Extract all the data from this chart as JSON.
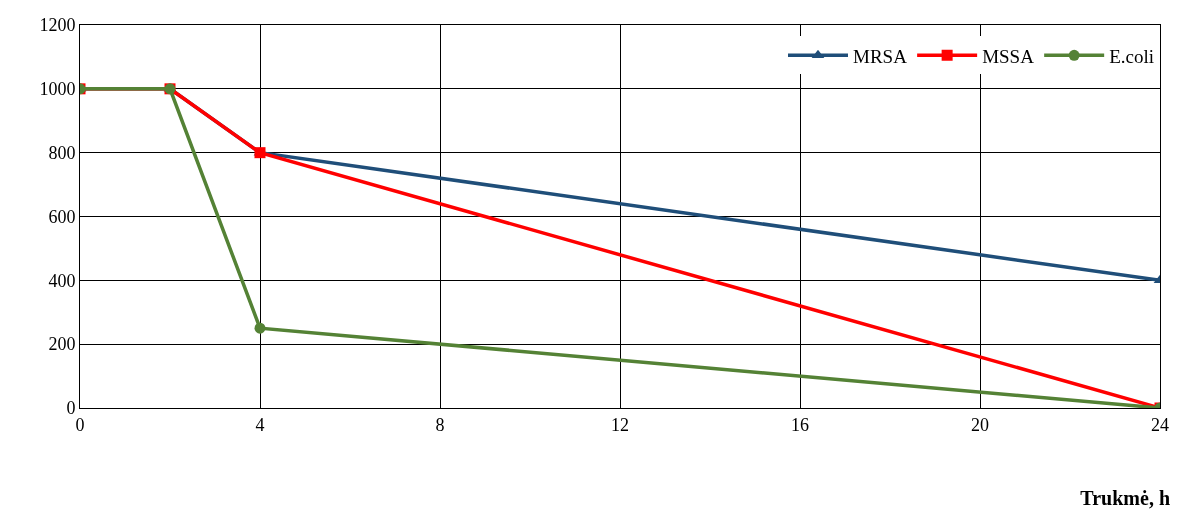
{
  "chart_data": {
    "type": "line",
    "xlabel": "Trukmė, h",
    "x": [
      0,
      2,
      4,
      24
    ],
    "series": [
      {
        "name": "MRSA",
        "color": "#1f4e79",
        "marker": "triangle",
        "values": [
          1000,
          1000,
          800,
          400
        ]
      },
      {
        "name": "MSSA",
        "color": "#ff0000",
        "marker": "square",
        "values": [
          1000,
          1000,
          800,
          0
        ]
      },
      {
        "name": "E.coli",
        "color": "#548235",
        "marker": "circle",
        "values": [
          1000,
          1000,
          250,
          0
        ]
      }
    ],
    "xlim": [
      0,
      24
    ],
    "xticks": [
      0,
      4,
      8,
      12,
      16,
      20,
      24
    ],
    "ylim": [
      0,
      1200
    ],
    "yticks": [
      0,
      200,
      400,
      600,
      800,
      1000,
      1200
    ],
    "grid": true,
    "legend": "top right",
    "line_style": "solid"
  }
}
